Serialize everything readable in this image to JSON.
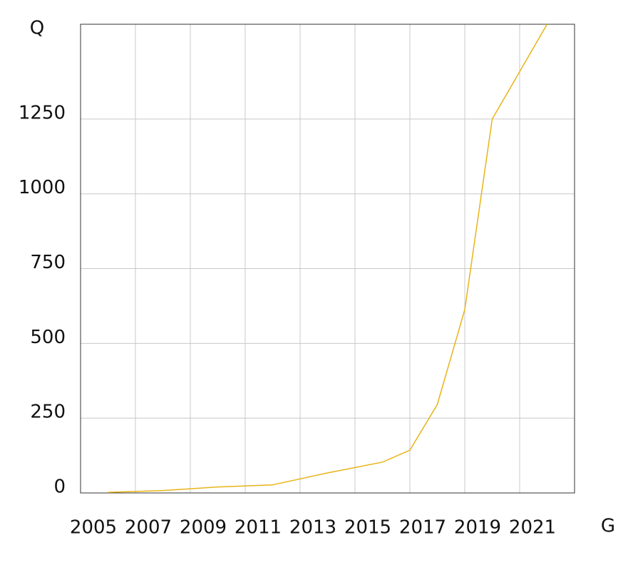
{
  "chart_data": {
    "type": "line",
    "x_label": "G",
    "y_label": "Q",
    "x": [
      2006,
      2008,
      2010,
      2012,
      2014,
      2016,
      2017,
      2018,
      2019,
      2020,
      2022
    ],
    "series": [
      {
        "color": "#e8b418",
        "values": [
          2,
          8,
          20,
          27,
          67,
          103,
          143,
          296,
          613,
          1250,
          1567
        ]
      }
    ],
    "xlim": [
      2005,
      2023
    ],
    "xticks": [
      2005,
      2007,
      2009,
      2011,
      2013,
      2015,
      2017,
      2019,
      2021
    ],
    "ylim": [
      0,
      1567
    ],
    "yticks": [
      0,
      250,
      500,
      750,
      1000,
      1250
    ],
    "grid": true
  }
}
